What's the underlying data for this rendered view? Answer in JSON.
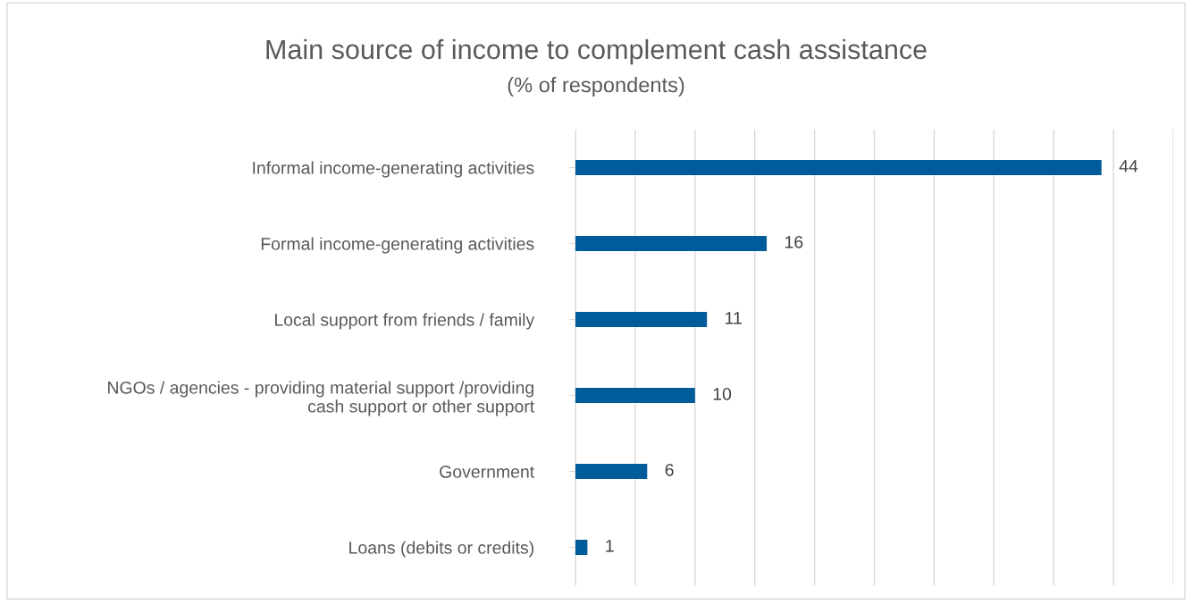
{
  "chart_data": {
    "type": "bar",
    "orientation": "horizontal",
    "title": "Main source of income to complement cash assistance",
    "subtitle": "(% of respondents)",
    "categories": [
      "Informal income-generating activities",
      "Formal income-generating activities",
      "Local support from friends / family",
      "NGOs / agencies - providing material support /providing\ncash support or other support",
      "Government",
      "Loans (debits or credits)"
    ],
    "values": [
      44,
      16,
      11,
      10,
      6,
      1
    ],
    "color": "#005b9a",
    "data_labels": true,
    "xlim": [
      0,
      50
    ],
    "xticks": [
      {
        "value": 0,
        "label": null
      },
      {
        "value": 5,
        "label": null
      },
      {
        "value": 10,
        "label": null
      },
      {
        "value": 15,
        "label": null
      },
      {
        "value": 20,
        "label": null
      },
      {
        "value": 25,
        "label": null
      },
      {
        "value": 30,
        "label": null
      },
      {
        "value": 35,
        "label": null
      },
      {
        "value": 40,
        "label": null
      },
      {
        "value": 45,
        "label": null
      },
      {
        "value": 50,
        "label": null
      }
    ],
    "grid": "x",
    "tick_labels": "y"
  }
}
